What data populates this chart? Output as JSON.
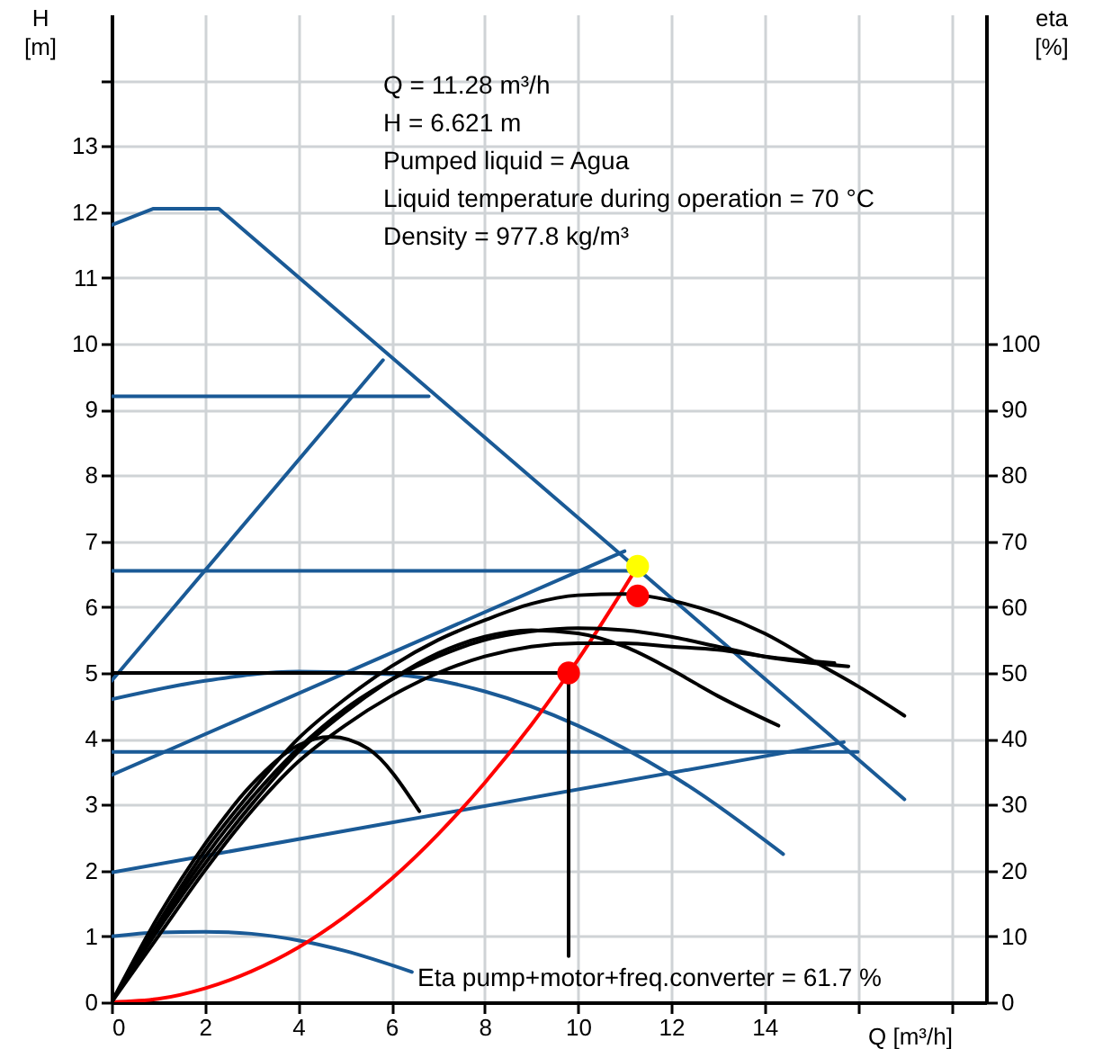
{
  "chart_data": {
    "type": "line",
    "xlabel": "Q [m³/h]",
    "ylabel": "H [m]",
    "y2label": "eta [%]",
    "xlim": [
      0,
      18.75
    ],
    "xticks": [
      0,
      2,
      4,
      6,
      8,
      10,
      12,
      14,
      {
        "value": 16,
        "label": null
      },
      {
        "value": 18,
        "label": null
      }
    ],
    "ylim": [
      0,
      15
    ],
    "yticks": [
      0,
      1,
      2,
      3,
      4,
      5,
      6,
      7,
      8,
      9,
      10,
      11,
      12,
      13,
      {
        "value": 14,
        "label": null
      }
    ],
    "y2lim": [
      0,
      150
    ],
    "y2ticks": [
      0,
      10,
      20,
      30,
      40,
      50,
      60,
      70,
      80,
      90,
      100
    ],
    "grid": true,
    "annotations": [
      "Q = 11.28 m³/h",
      "H = 6.621 m",
      "Pumped liquid = Agua",
      "Liquid temperature during operation = 70 °C",
      "Density = 977.8 kg/m³",
      "Eta pump+motor+freq.converter = 61.7 %"
    ],
    "series": [
      {
        "color": "#1a5a96",
        "x": [
          0,
          0.9,
          2.3,
          11.0,
          17.0
        ],
        "values": [
          11.8,
          12.05,
          12.05,
          6.75,
          3.08
        ]
      },
      {
        "color": "#1a5a96",
        "x": [
          0,
          6.8
        ],
        "values": [
          9.2,
          9.2
        ]
      },
      {
        "color": "#1a5a96",
        "x": [
          0,
          11.2
        ],
        "values": [
          6.55,
          6.55
        ]
      },
      {
        "color": "#1a5a96",
        "x": [
          0,
          16
        ],
        "values": [
          3.8,
          3.8
        ]
      },
      {
        "color": "#1a5a96",
        "x": [
          0,
          5.82
        ],
        "values": [
          4.88,
          9.75
        ]
      },
      {
        "color": "#1a5a96",
        "x": [
          0,
          11.0
        ],
        "values": [
          3.45,
          6.85
        ]
      },
      {
        "color": "#1a5a96",
        "x": [
          0,
          15.7
        ],
        "values": [
          1.97,
          3.95
        ]
      },
      {
        "color": "#1a5a96",
        "x": [
          0,
          2,
          4,
          6,
          8,
          10,
          12,
          14.4
        ],
        "values": [
          4.6,
          4.88,
          5.02,
          4.98,
          4.72,
          4.2,
          3.45,
          2.25
        ]
      },
      {
        "color": "#1a5a96",
        "x": [
          0,
          1,
          2,
          3,
          4,
          5,
          6.44
        ],
        "values": [
          1.0,
          1.06,
          1.07,
          1.04,
          0.94,
          0.78,
          0.46
        ]
      },
      {
        "color": "#000000",
        "axis": "y2",
        "x": [
          0,
          1,
          2,
          3,
          4,
          5,
          6,
          7,
          8,
          9,
          10,
          11,
          12,
          13,
          14,
          15,
          16,
          17
        ],
        "values": [
          0,
          12,
          23,
          32,
          40,
          46,
          51,
          55,
          58,
          60.5,
          61.8,
          62,
          61,
          59,
          56,
          52,
          48,
          43.5
        ]
      },
      {
        "color": "#000000",
        "axis": "y2",
        "x": [
          0,
          1,
          2,
          3,
          4,
          4.7,
          5.5,
          6.6
        ],
        "values": [
          0,
          13,
          24,
          33,
          39,
          40.3,
          38.5,
          29
        ]
      },
      {
        "color": "#000000",
        "axis": "y2",
        "x": [
          0,
          1,
          2,
          3,
          4,
          5,
          6,
          7,
          8,
          9,
          10,
          11,
          12,
          13,
          14.3
        ],
        "values": [
          0,
          11,
          21,
          30,
          38,
          44,
          49,
          53,
          55.5,
          56.5,
          56,
          54,
          50.5,
          46.5,
          42
        ]
      },
      {
        "color": "#000000",
        "axis": "y2",
        "x": [
          0,
          1,
          2,
          3,
          4,
          5,
          6,
          7,
          8,
          9,
          10,
          11,
          12,
          13,
          14,
          15.5
        ],
        "values": [
          0,
          10,
          20,
          29,
          36.5,
          42,
          46.5,
          50,
          52.5,
          54,
          54.5,
          54.5,
          54,
          53.5,
          52.5,
          51.5
        ]
      },
      {
        "color": "#000000",
        "axis": "y2",
        "x": [
          0,
          1,
          2,
          3,
          4,
          5,
          6,
          7,
          8,
          9,
          10,
          11,
          12,
          13,
          14,
          15.8
        ],
        "values": [
          0,
          11.5,
          22,
          31,
          38.5,
          44.5,
          49,
          52.5,
          55,
          56.3,
          56.8,
          56.5,
          55.5,
          54,
          52.5,
          51
        ]
      },
      {
        "color": "#ff0000",
        "x": [
          0,
          1,
          2,
          3,
          4,
          5,
          6,
          7,
          8,
          9,
          10,
          11,
          11.28
        ],
        "values": [
          0,
          0.05,
          0.21,
          0.47,
          0.83,
          1.3,
          1.87,
          2.55,
          3.33,
          4.21,
          5.2,
          6.3,
          6.62
        ]
      },
      {
        "color": "#000000",
        "x": [
          0,
          9.8,
          9.8
        ],
        "values": [
          5,
          5,
          0.7
        ]
      },
      {
        "type": "scatter",
        "color": "#ff0000",
        "x": [
          9.8
        ],
        "values": [
          5.0
        ]
      },
      {
        "type": "scatter",
        "color": "#ff0000",
        "axis": "y2",
        "x": [
          11.28
        ],
        "values": [
          61.7
        ]
      },
      {
        "type": "scatter",
        "color": "#ffff00",
        "x": [
          11.28
        ],
        "values": [
          6.62
        ]
      }
    ]
  }
}
